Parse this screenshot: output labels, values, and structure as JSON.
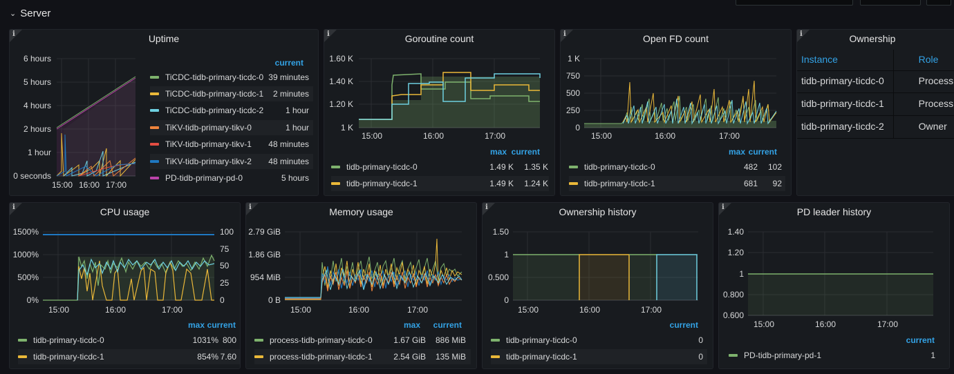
{
  "row": {
    "title": "Server",
    "chevron_icon": "chevron-down-icon"
  },
  "panels": {
    "uptime": {
      "title": "Uptime",
      "legend_header": "current",
      "y_ticks": [
        "6 hours",
        "5 hours",
        "4 hours",
        "2 hours",
        "1 hour",
        "0 seconds"
      ],
      "x_ticks": [
        "15:00",
        "16:00",
        "17:00"
      ],
      "series": [
        {
          "name": "TiCDC-tidb-primary-ticdc-0",
          "current": "39 minutes",
          "color": "#7eb26d"
        },
        {
          "name": "TiCDC-tidb-primary-ticdc-1",
          "current": "2 minutes",
          "color": "#eab839"
        },
        {
          "name": "TiCDC-tidb-primary-ticdc-2",
          "current": "1 hour",
          "color": "#6ed0e0"
        },
        {
          "name": "TiKV-tidb-primary-tikv-0",
          "current": "1 hour",
          "color": "#ef843c"
        },
        {
          "name": "TiKV-tidb-primary-tikv-1",
          "current": "48 minutes",
          "color": "#e24d42"
        },
        {
          "name": "TiKV-tidb-primary-tikv-2",
          "current": "48 minutes",
          "color": "#1f78c1"
        },
        {
          "name": "PD-tidb-primary-pd-0",
          "current": "5 hours",
          "color": "#ba43a9"
        }
      ]
    },
    "goroutine": {
      "title": "Goroutine count",
      "legend_headers": [
        "max",
        "current"
      ],
      "y_ticks": [
        "1.60 K",
        "1.40 K",
        "1.20 K",
        "1 K"
      ],
      "x_ticks": [
        "15:00",
        "16:00",
        "17:00"
      ],
      "series": [
        {
          "name": "tidb-primary-ticdc-0",
          "max": "1.49 K",
          "current": "1.35 K",
          "color": "#7eb26d"
        },
        {
          "name": "tidb-primary-ticdc-1",
          "max": "1.49 K",
          "current": "1.24 K",
          "color": "#eab839"
        }
      ]
    },
    "openfd": {
      "title": "Open FD count",
      "legend_headers": [
        "max",
        "current"
      ],
      "y_ticks": [
        "1 K",
        "750",
        "500",
        "250",
        "0"
      ],
      "x_ticks": [
        "15:00",
        "16:00",
        "17:00"
      ],
      "series": [
        {
          "name": "tidb-primary-ticdc-0",
          "max": "482",
          "current": "102",
          "color": "#7eb26d"
        },
        {
          "name": "tidb-primary-ticdc-1",
          "max": "681",
          "current": "92",
          "color": "#eab839"
        }
      ]
    },
    "ownership": {
      "title": "Ownership",
      "columns": [
        "Instance",
        "Role"
      ],
      "rows": [
        {
          "instance": "tidb-primary-ticdc-0",
          "role": "Process"
        },
        {
          "instance": "tidb-primary-ticdc-1",
          "role": "Process"
        },
        {
          "instance": "tidb-primary-ticdc-2",
          "role": "Owner"
        }
      ]
    },
    "cpu": {
      "title": "CPU usage",
      "legend_headers": [
        "max",
        "current"
      ],
      "y_ticks": [
        "1500%",
        "1000%",
        "500%",
        "0%"
      ],
      "y2_ticks": [
        "100",
        "75",
        "50",
        "25",
        "0"
      ],
      "x_ticks": [
        "15:00",
        "16:00",
        "17:00"
      ],
      "series": [
        {
          "name": "tidb-primary-ticdc-0",
          "max": "1031%",
          "current": "800",
          "color": "#7eb26d"
        },
        {
          "name": "tidb-primary-ticdc-1",
          "max": "854%",
          "current": "7.60",
          "color": "#eab839"
        }
      ]
    },
    "memory": {
      "title": "Memory usage",
      "legend_headers": [
        "max",
        "current"
      ],
      "y_ticks": [
        "2.79 GiB",
        "1.86 GiB",
        "954 MiB",
        "0 B"
      ],
      "x_ticks": [
        "15:00",
        "16:00",
        "17:00"
      ],
      "series": [
        {
          "name": "process-tidb-primary-ticdc-0",
          "max": "1.67 GiB",
          "current": "886 MiB",
          "color": "#7eb26d"
        },
        {
          "name": "process-tidb-primary-ticdc-1",
          "max": "2.54 GiB",
          "current": "135 MiB",
          "color": "#eab839"
        }
      ]
    },
    "ownership_history": {
      "title": "Ownership history",
      "legend_header": "current",
      "y_ticks": [
        "1.50",
        "1",
        "0.500",
        "0"
      ],
      "x_ticks": [
        "15:00",
        "16:00",
        "17:00"
      ],
      "series": [
        {
          "name": "tidb-primary-ticdc-0",
          "current": "0",
          "color": "#7eb26d"
        },
        {
          "name": "tidb-primary-ticdc-1",
          "current": "0",
          "color": "#eab839"
        }
      ]
    },
    "pd_leader": {
      "title": "PD leader history",
      "legend_header": "current",
      "y_ticks": [
        "1.40",
        "1.20",
        "1",
        "0.800",
        "0.600"
      ],
      "x_ticks": [
        "15:00",
        "16:00",
        "17:00"
      ],
      "series": [
        {
          "name": "PD-tidb-primary-pd-1",
          "current": "1",
          "color": "#7eb26d"
        }
      ]
    }
  }
}
